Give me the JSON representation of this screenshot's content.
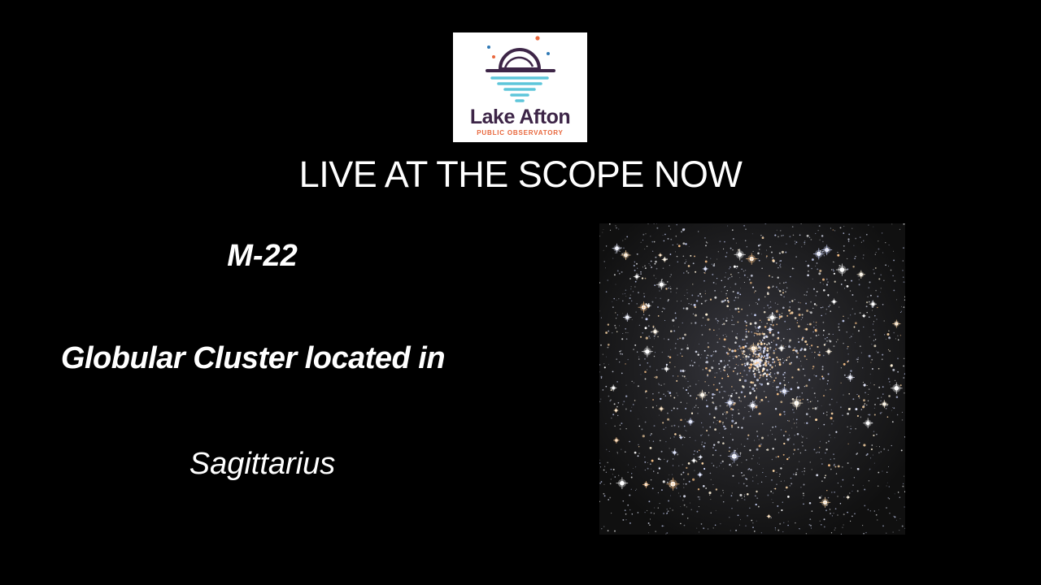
{
  "logo": {
    "name_line": "Lake Afton",
    "tagline": "PUBLIC OBSERVATORY",
    "colors": {
      "dark": "#3d2547",
      "water": "#5ec6da",
      "accent_orange": "#e8663b",
      "accent_blue": "#2f79b5"
    }
  },
  "headline": "LIVE AT THE SCOPE NOW",
  "object": {
    "id": "M-22",
    "type": "Globular Cluster located in",
    "constellation": "Sagittarius"
  },
  "photo": {
    "subject": "globular-cluster-starfield"
  },
  "colors": {
    "background": "#000000",
    "text": "#ffffff"
  }
}
